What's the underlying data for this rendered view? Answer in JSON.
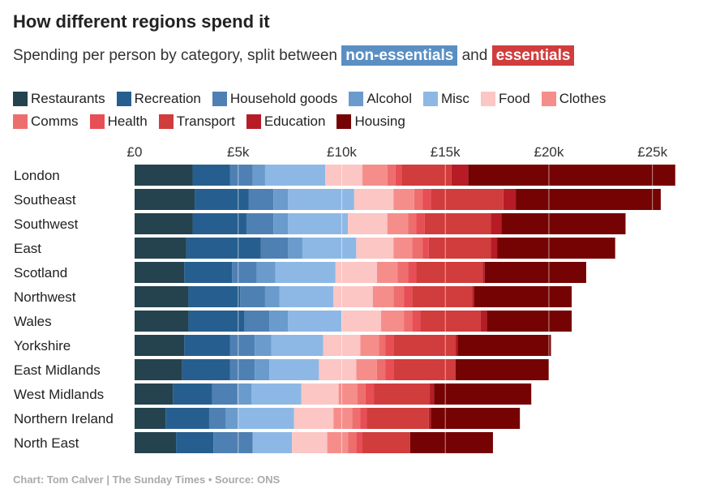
{
  "header": {
    "title": "How different regions spend it",
    "subtitle_prefix": "Spending per person by category, split between",
    "non_essentials_label": "non-essentials",
    "and_word": "and",
    "essentials_label": "essentials"
  },
  "colors": {
    "non_essentials": "#5a8fc3",
    "essentials": "#d13c3c"
  },
  "legend": {
    "rows": [
      [
        {
          "label": "Restaurants",
          "color": "#25424f"
        },
        {
          "label": "Recreation",
          "color": "#265f8f"
        },
        {
          "label": "Household goods",
          "color": "#4f80b4"
        },
        {
          "label": "Alcohol",
          "color": "#6a9bcc"
        },
        {
          "label": "Misc",
          "color": "#8db8e5"
        },
        {
          "label": "Food",
          "color": "#fbc6c4"
        },
        {
          "label": "Clothes",
          "color": "#f58e8b"
        }
      ],
      [
        {
          "label": "Comms",
          "color": "#ee6e6e"
        },
        {
          "label": "Health",
          "color": "#e84e55"
        },
        {
          "label": "Transport",
          "color": "#d13c3c"
        },
        {
          "label": "Education",
          "color": "#b71c26"
        },
        {
          "label": "Housing",
          "color": "#760303"
        }
      ]
    ]
  },
  "chart_data": {
    "type": "bar",
    "orientation": "horizontal",
    "stacked": true,
    "title": "How different regions spend it",
    "subtitle": "Spending per person by category, split between non-essentials and essentials",
    "xlabel": "",
    "ylabel": "",
    "xlim": [
      0,
      26500
    ],
    "xticks": [
      0,
      5000,
      10000,
      15000,
      20000,
      25000
    ],
    "xtick_labels": [
      "£0",
      "£5k",
      "£10k",
      "£15k",
      "£20k",
      "£25k"
    ],
    "grid": true,
    "legend_position": "top",
    "categories": [
      "London",
      "Southeast",
      "Southwest",
      "East",
      "Scotland",
      "Northwest",
      "Wales",
      "Yorkshire",
      "East Midlands",
      "West Midlands",
      "Northern Ireland",
      "North East"
    ],
    "series": [
      {
        "name": "Restaurants",
        "color": "#25424f",
        "values": [
          2800,
          2900,
          2800,
          2500,
          2400,
          2600,
          2600,
          2400,
          2300,
          1850,
          1500,
          2000
        ]
      },
      {
        "name": "Recreation",
        "color": "#265f8f",
        "values": [
          1800,
          2600,
          2600,
          3600,
          2300,
          2500,
          2700,
          2200,
          2300,
          1900,
          2100,
          1800
        ]
      },
      {
        "name": "Household goods",
        "color": "#4f80b4",
        "values": [
          1100,
          1200,
          1300,
          1300,
          1200,
          1200,
          1200,
          1200,
          1200,
          1200,
          800,
          1900
        ]
      },
      {
        "name": "Alcohol",
        "color": "#6a9bcc",
        "values": [
          600,
          700,
          700,
          700,
          900,
          700,
          900,
          800,
          700,
          700,
          600,
          0
        ]
      },
      {
        "name": "Misc",
        "color": "#8db8e5",
        "values": [
          2900,
          3200,
          2900,
          2600,
          2900,
          2600,
          2600,
          2500,
          2400,
          2400,
          2700,
          1900
        ]
      },
      {
        "name": "Food",
        "color": "#fbc6c4",
        "values": [
          1800,
          1900,
          1900,
          1800,
          2000,
          1900,
          1900,
          1800,
          1800,
          1800,
          1900,
          1700
        ]
      },
      {
        "name": "Clothes",
        "color": "#f58e8b",
        "values": [
          1200,
          1000,
          1000,
          900,
          1000,
          1000,
          1100,
          900,
          1000,
          900,
          900,
          1000
        ]
      },
      {
        "name": "Comms",
        "color": "#ee6e6e",
        "values": [
          400,
          400,
          400,
          500,
          500,
          500,
          400,
          300,
          400,
          400,
          400,
          400
        ]
      },
      {
        "name": "Health",
        "color": "#e84e55",
        "values": [
          300,
          400,
          400,
          300,
          400,
          400,
          400,
          400,
          400,
          400,
          300,
          300
        ]
      },
      {
        "name": "Transport",
        "color": "#d13c3c",
        "values": [
          2400,
          3500,
          3200,
          3000,
          3200,
          2900,
          2900,
          3000,
          3000,
          2700,
          3000,
          2300
        ]
      },
      {
        "name": "Education",
        "color": "#b71c26",
        "values": [
          800,
          600,
          500,
          300,
          100,
          100,
          300,
          100,
          0,
          200,
          100,
          0
        ]
      },
      {
        "name": "Housing",
        "color": "#760303",
        "values": [
          10000,
          7000,
          6000,
          5700,
          4900,
          4700,
          4100,
          4500,
          4500,
          4700,
          4300,
          4000
        ]
      }
    ]
  },
  "footer": {
    "credit": "Chart: Tom Calver | The Sunday Times • Source: ONS"
  }
}
